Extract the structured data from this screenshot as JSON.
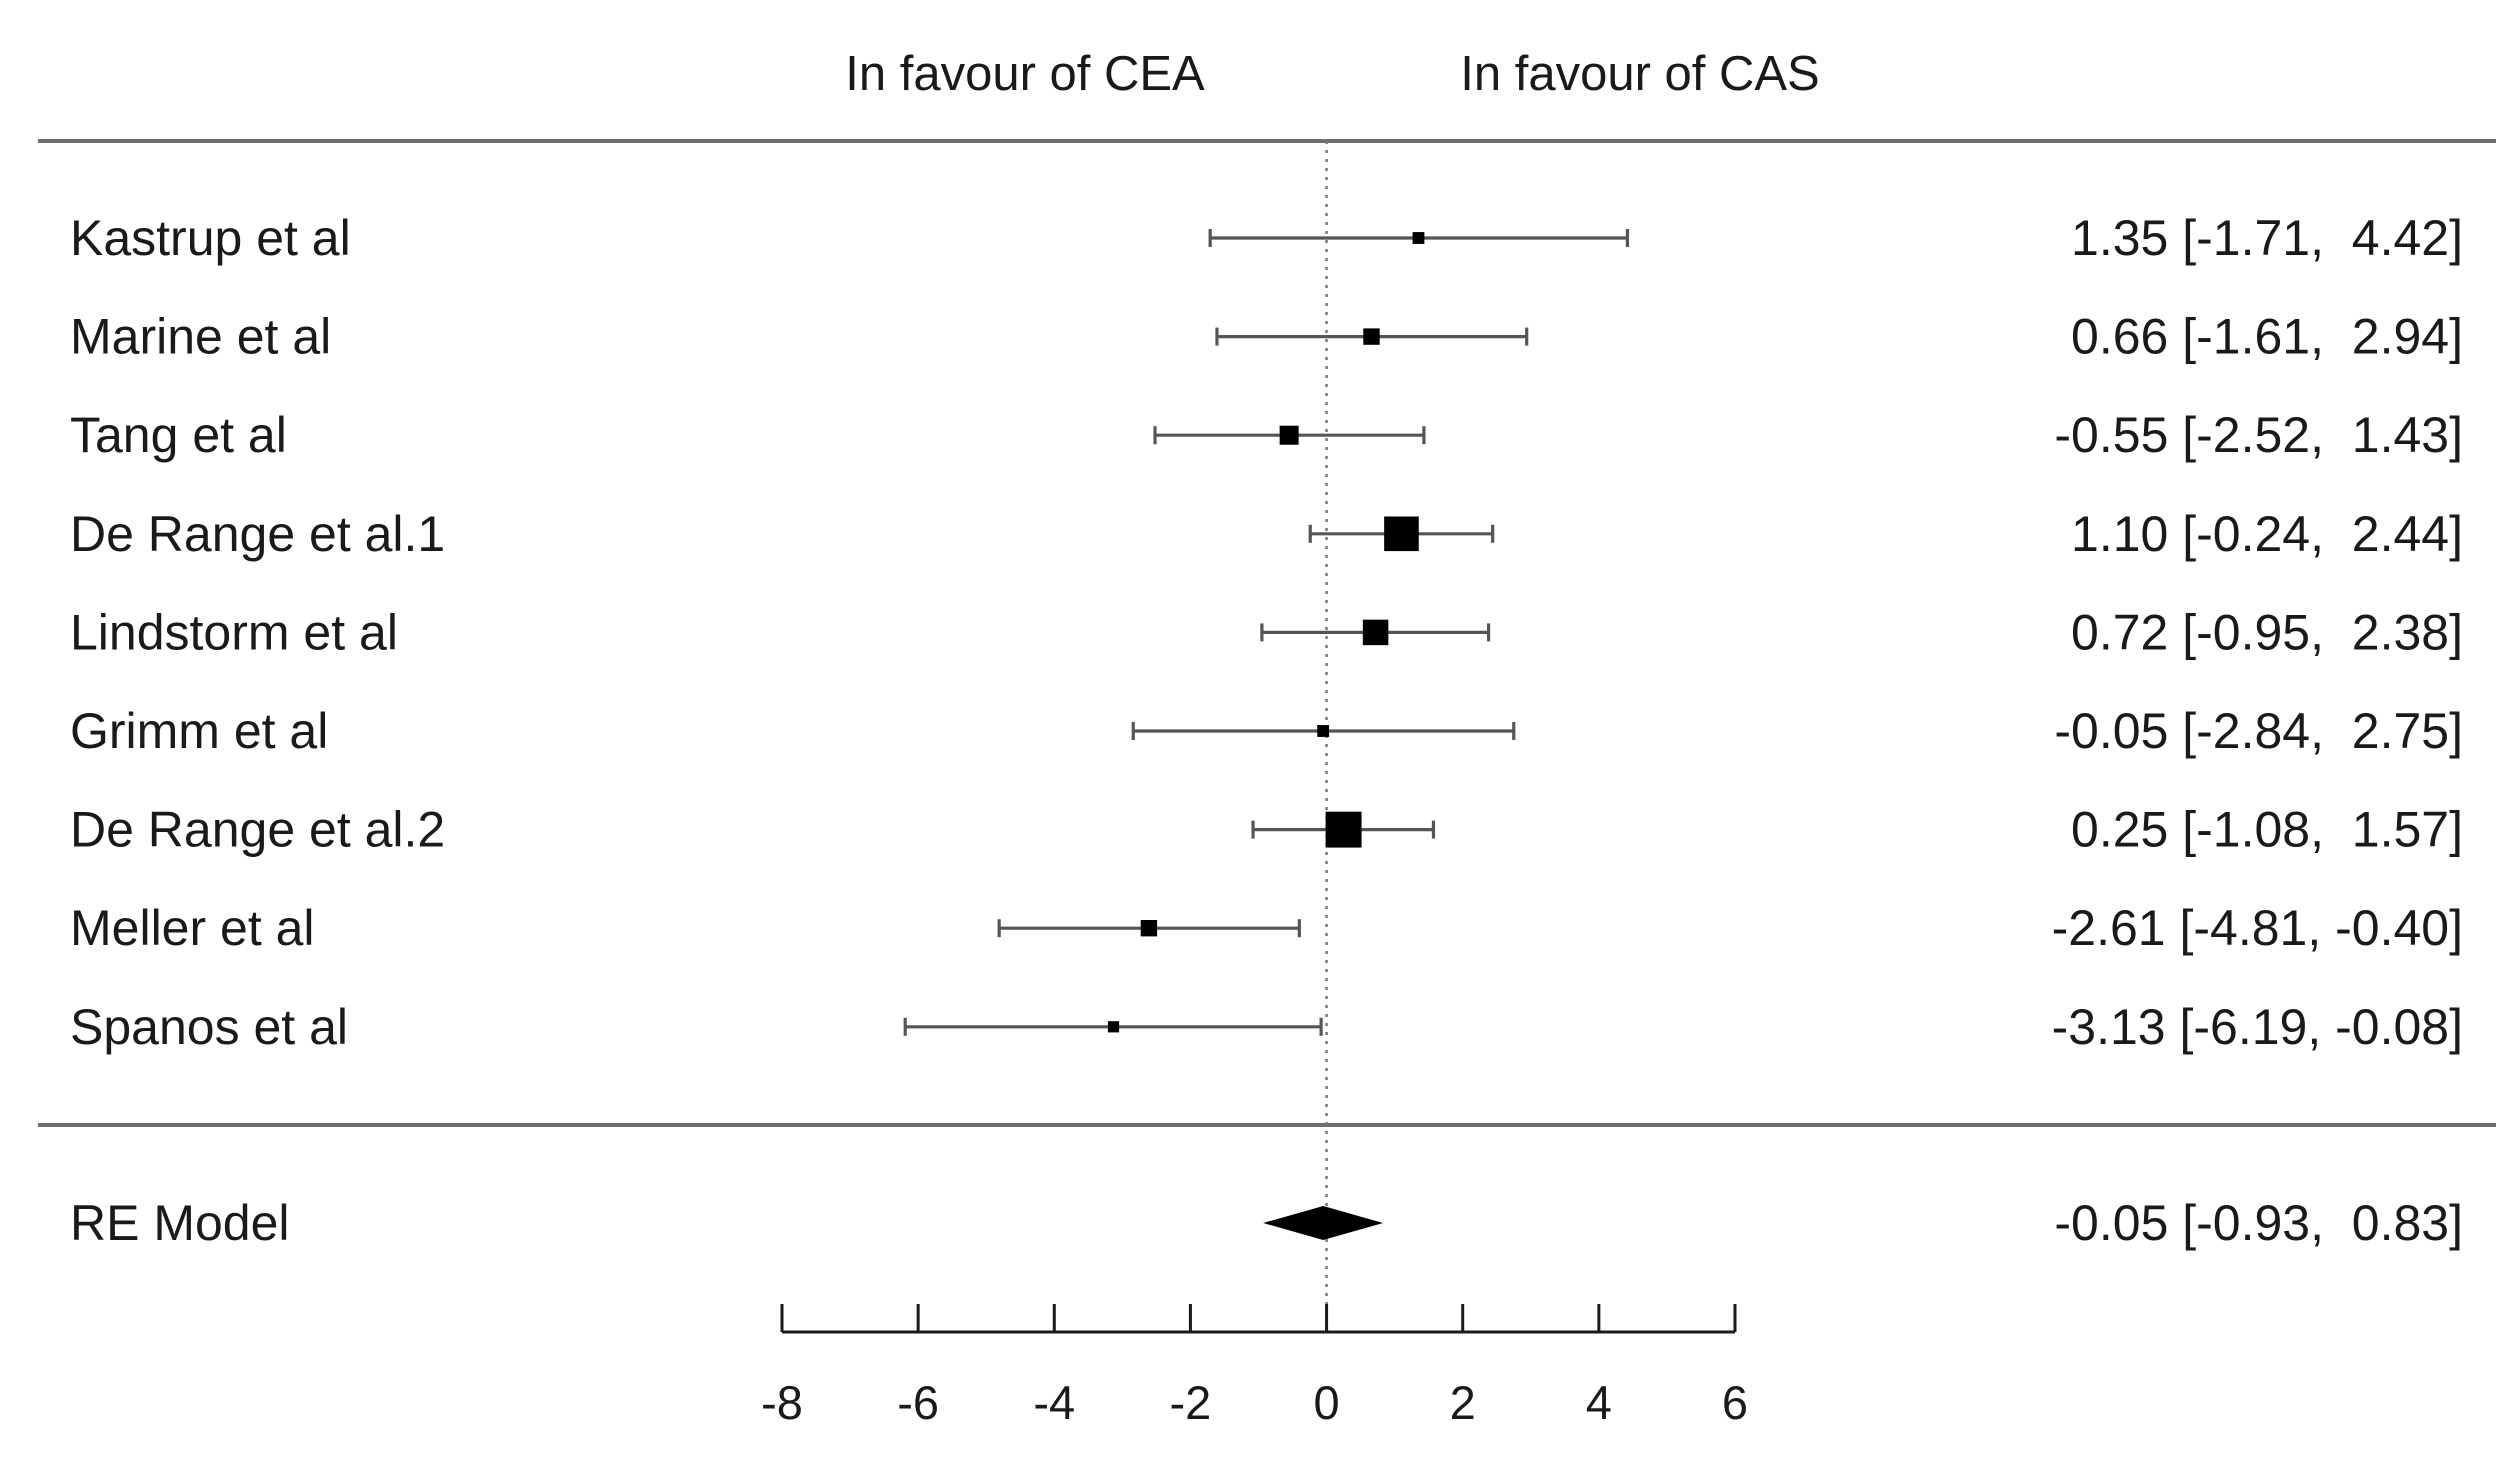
{
  "chart_data": {
    "type": "forest",
    "header": {
      "left": "In favour of CEA",
      "right": "In favour of CAS"
    },
    "studies": [
      {
        "label": "Kastrup et al",
        "estimate": 1.35,
        "lower": -1.71,
        "upper": 4.42,
        "ci_text": "1.35 [-1.71,  4.42]",
        "weight": 0.9
      },
      {
        "label": "Marine et al",
        "estimate": 0.66,
        "lower": -1.61,
        "upper": 2.94,
        "ci_text": "0.66 [-1.61,  2.94]",
        "weight": 1.6
      },
      {
        "label": "Tang et al",
        "estimate": -0.55,
        "lower": -2.52,
        "upper": 1.43,
        "ci_text": "-0.55 [-2.52,  1.43]",
        "weight": 2.0
      },
      {
        "label": "De Range et al.1",
        "estimate": 1.1,
        "lower": -0.24,
        "upper": 2.44,
        "ci_text": "1.10 [-0.24,  2.44]",
        "weight": 4.4
      },
      {
        "label": "Lindstorm et al",
        "estimate": 0.72,
        "lower": -0.95,
        "upper": 2.38,
        "ci_text": "0.72 [-0.95,  2.38]",
        "weight": 3.0
      },
      {
        "label": "Grimm et al",
        "estimate": -0.05,
        "lower": -2.84,
        "upper": 2.75,
        "ci_text": "-0.05 [-2.84,  2.75]",
        "weight": 0.9
      },
      {
        "label": "De Range et al.2",
        "estimate": 0.25,
        "lower": -1.08,
        "upper": 1.57,
        "ci_text": "0.25 [-1.08,  1.57]",
        "weight": 4.6
      },
      {
        "label": "Meller et al",
        "estimate": -2.61,
        "lower": -4.81,
        "upper": -0.4,
        "ci_text": "-2.61 [-4.81, -0.40]",
        "weight": 1.6
      },
      {
        "label": "Spanos et al",
        "estimate": -3.13,
        "lower": -6.19,
        "upper": -0.08,
        "ci_text": "-3.13 [-6.19, -0.08]",
        "weight": 0.8
      }
    ],
    "summary": {
      "label": "RE Model",
      "estimate": -0.05,
      "lower": -0.93,
      "upper": 0.83,
      "ci_text": "-0.05 [-0.93,  0.83]"
    },
    "x_axis": {
      "range": [
        -8,
        6
      ],
      "ticks": [
        -8,
        -6,
        -4,
        -2,
        0,
        2,
        4,
        6
      ],
      "tick_labels": [
        "-8",
        "-6",
        "-4",
        "-2",
        "0",
        "2",
        "4",
        "6"
      ],
      "reference_line": 0
    },
    "colors": {
      "marker": "#000000",
      "whisker": "#555555",
      "rule": "#6e6e6e"
    }
  }
}
